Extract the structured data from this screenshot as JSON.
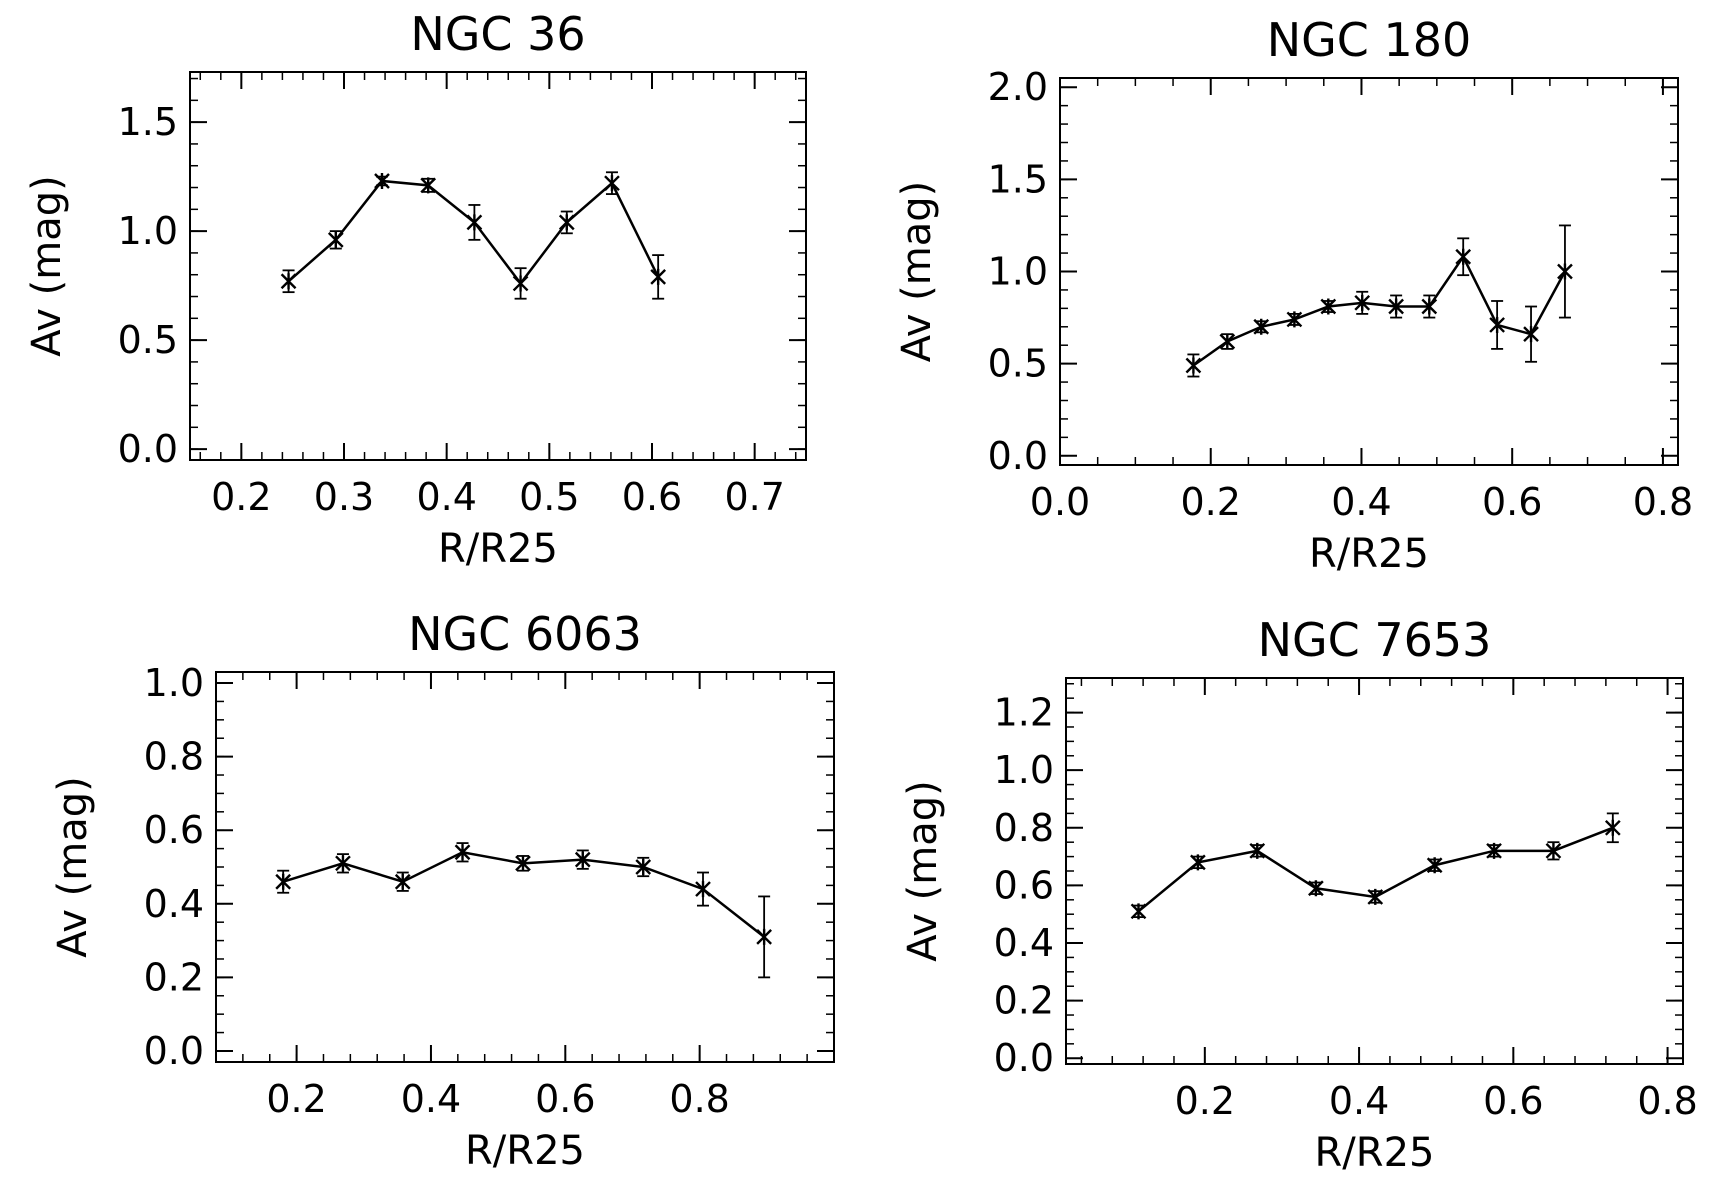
{
  "colors": {
    "ink": "#000000",
    "background": "#ffffff"
  },
  "chart_data": [
    {
      "type": "line",
      "title": "NGC 36",
      "xlabel": "R/R25",
      "ylabel": "Av (mag)",
      "xlim": [
        0.15,
        0.75
      ],
      "ylim": [
        -0.05,
        1.73
      ],
      "xticks": [
        0.2,
        0.3,
        0.4,
        0.5,
        0.6,
        0.7
      ],
      "yticks": [
        0.0,
        0.5,
        1.0,
        1.5
      ],
      "xtick_labels": [
        "0.2",
        "0.3",
        "0.4",
        "0.5",
        "0.6",
        "0.7"
      ],
      "ytick_labels": [
        "0.0",
        "0.5",
        "1.0",
        "1.5"
      ],
      "xminor": 0.02,
      "yminor": 0.1,
      "x": [
        0.246,
        0.292,
        0.337,
        0.382,
        0.427,
        0.472,
        0.517,
        0.561,
        0.606
      ],
      "y": [
        0.77,
        0.96,
        1.23,
        1.21,
        1.04,
        0.76,
        1.04,
        1.22,
        0.79
      ],
      "err": [
        0.05,
        0.04,
        0.02,
        0.03,
        0.08,
        0.07,
        0.05,
        0.05,
        0.1
      ]
    },
    {
      "type": "line",
      "title": "NGC 180",
      "xlabel": "R/R25",
      "ylabel": "Av (mag)",
      "xlim": [
        0.0,
        0.82
      ],
      "ylim": [
        -0.05,
        2.05
      ],
      "xticks": [
        0.0,
        0.2,
        0.4,
        0.6,
        0.8
      ],
      "yticks": [
        0.0,
        0.5,
        1.0,
        1.5,
        2.0
      ],
      "xtick_labels": [
        "0.0",
        "0.2",
        "0.4",
        "0.6",
        "0.8"
      ],
      "ytick_labels": [
        "0.0",
        "0.5",
        "1.0",
        "1.5",
        "2.0"
      ],
      "xminor": 0.05,
      "yminor": 0.1,
      "x": [
        0.177,
        0.222,
        0.267,
        0.311,
        0.356,
        0.401,
        0.446,
        0.49,
        0.535,
        0.58,
        0.625,
        0.67
      ],
      "y": [
        0.49,
        0.62,
        0.7,
        0.74,
        0.81,
        0.83,
        0.81,
        0.81,
        1.08,
        0.71,
        0.66,
        1.0
      ],
      "err": [
        0.06,
        0.04,
        0.03,
        0.03,
        0.03,
        0.06,
        0.06,
        0.06,
        0.1,
        0.13,
        0.15,
        0.25
      ]
    },
    {
      "type": "line",
      "title": "NGC 6063",
      "xlabel": "R/R25",
      "ylabel": "Av (mag)",
      "xlim": [
        0.08,
        1.0
      ],
      "ylim": [
        -0.03,
        1.03
      ],
      "xticks": [
        0.2,
        0.4,
        0.6,
        0.8
      ],
      "yticks": [
        0.0,
        0.2,
        0.4,
        0.6,
        0.8,
        1.0
      ],
      "xtick_labels": [
        "0.2",
        "0.4",
        "0.6",
        "0.8"
      ],
      "ytick_labels": [
        "0.0",
        "0.2",
        "0.4",
        "0.6",
        "0.8",
        "1.0"
      ],
      "xminor": 0.04,
      "yminor": 0.05,
      "x": [
        0.18,
        0.269,
        0.358,
        0.447,
        0.537,
        0.626,
        0.716,
        0.805,
        0.896
      ],
      "y": [
        0.46,
        0.51,
        0.46,
        0.54,
        0.51,
        0.52,
        0.5,
        0.44,
        0.31
      ],
      "err": [
        0.03,
        0.025,
        0.025,
        0.025,
        0.02,
        0.025,
        0.025,
        0.045,
        0.11
      ]
    },
    {
      "type": "line",
      "title": "NGC 7653",
      "xlabel": "R/R25",
      "ylabel": "Av (mag)",
      "xlim": [
        0.02,
        0.82
      ],
      "ylim": [
        -0.02,
        1.32
      ],
      "xticks": [
        0.2,
        0.4,
        0.6,
        0.8
      ],
      "yticks": [
        0.0,
        0.2,
        0.4,
        0.6,
        0.8,
        1.0,
        1.2
      ],
      "xtick_labels": [
        "0.2",
        "0.4",
        "0.6",
        "0.8"
      ],
      "ytick_labels": [
        "0.0",
        "0.2",
        "0.4",
        "0.6",
        "0.8",
        "1.0",
        "1.2"
      ],
      "xminor": 0.04,
      "yminor": 0.05,
      "x": [
        0.114,
        0.191,
        0.268,
        0.344,
        0.421,
        0.498,
        0.575,
        0.652,
        0.729
      ],
      "y": [
        0.51,
        0.68,
        0.72,
        0.59,
        0.56,
        0.67,
        0.72,
        0.72,
        0.8
      ],
      "err": [
        0.02,
        0.02,
        0.02,
        0.02,
        0.02,
        0.02,
        0.02,
        0.03,
        0.05
      ]
    }
  ]
}
